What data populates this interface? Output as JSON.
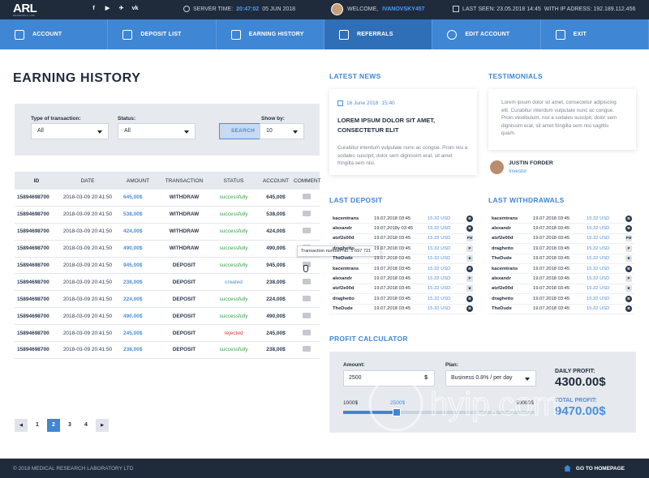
{
  "topbar": {
    "logo": "ARL",
    "logo_sub": "RESEARCH LAB",
    "social": [
      "f",
      "▶",
      "✈",
      "vk"
    ],
    "server_label": "SERVER TIME:",
    "server_time": "20:47:02",
    "server_date": "05 JUN 2018",
    "welcome_label": "WELCOME,",
    "username": "IVANOVSKY457",
    "last_seen": "LAST SEEN: 23.05.2018  14:45",
    "ip": "WITH IP ADRESS: 192.189.112.456"
  },
  "nav": [
    {
      "label": "ACCOUNT",
      "icon": "id-card-icon"
    },
    {
      "label": "DEPOSIT LIST",
      "icon": "image-icon"
    },
    {
      "label": "EARNING HISTORY",
      "icon": "document-icon"
    },
    {
      "label": "REFERRALS",
      "icon": "gift-icon",
      "active": true
    },
    {
      "label": "EDIT ACCOUNT",
      "icon": "gear-icon"
    },
    {
      "label": "EXIT",
      "icon": "exit-icon"
    }
  ],
  "earning": {
    "title": "EARNING HISTORY",
    "filter": {
      "type_label": "Type of transaction:",
      "type_value": "All",
      "status_label": "Status:",
      "status_value": "All",
      "search_label": "SEARCH",
      "show_label": "Show by:",
      "show_value": "10"
    },
    "columns": [
      "ID",
      "DATE",
      "AMOUNT",
      "TRANSACTION",
      "STATUS",
      "ACCOUNT",
      "COMMENT"
    ],
    "rows": [
      {
        "id": "15894698700",
        "date": "2018-03-09  20:41:50",
        "amount": "645,00$",
        "tx": "WITHDRAW",
        "status": "successfully",
        "account": "645,00$"
      },
      {
        "id": "15894698700",
        "date": "2018-03-09  20:41:50",
        "amount": "538,00$",
        "tx": "WITHDRAW",
        "status": "successfully",
        "account": "538,00$"
      },
      {
        "id": "15894698700",
        "date": "2018-03-09  20:41:50",
        "amount": "424,00$",
        "tx": "WITHDRAW",
        "status": "successfully",
        "account": "424,00$"
      },
      {
        "id": "15894698700",
        "date": "2018-03-09  20:41:50",
        "amount": "490,00$",
        "tx": "WITHDRAW",
        "status": "successfully",
        "account": "490,00$"
      },
      {
        "id": "15894698700",
        "date": "2018-03-09  20:41:50",
        "amount": "945,00$",
        "tx": "DEPOSIT",
        "status": "successfully",
        "account": "945,00$"
      },
      {
        "id": "15894698700",
        "date": "2018-03-09  20:41:50",
        "amount": "238,00$",
        "tx": "DEPOSIT",
        "status": "created",
        "account": "238,00$"
      },
      {
        "id": "15894698700",
        "date": "2018-03-09  20:41:50",
        "amount": "224,00$",
        "tx": "DEPOSIT",
        "status": "successfully",
        "account": "224,00$"
      },
      {
        "id": "15894698700",
        "date": "2018-03-09  20:41:50",
        "amount": "490,00$",
        "tx": "DEPOSIT",
        "status": "successfully",
        "account": "490,00$"
      },
      {
        "id": "15894698700",
        "date": "2018-03-09  20:41:50",
        "amount": "245,00$",
        "tx": "DEPOSIT",
        "status": "rejected",
        "account": "245,00$"
      },
      {
        "id": "15894698700",
        "date": "2018-03-09  20:41:50",
        "amount": "238,00$",
        "tx": "DEPOSIT",
        "status": "successfully",
        "account": "238,00$"
      }
    ],
    "tooltip": "Transaction number No. 5 697 721",
    "pages": [
      "1",
      "2",
      "3",
      "4"
    ],
    "active_page": "2"
  },
  "news": {
    "title": "LATEST NEWS",
    "date": "16 June 2018",
    "time": "15:40",
    "headline": "LOREM IPSUM DOLOR SIT AMET, CONSECTETUR ELIT",
    "text": "Curabitur interdum vulputate nunc ac congue. Proin nisi a sodales suscipit, dolor sem dignissim erat, sit amet fringilla sem nisi."
  },
  "testimonials": {
    "title": "TESTIMONIALS",
    "text": "Lorem ipsum dolor sit amet, consectetur adipiscing elit. Curabitur interdum vulputate nunc ac congue. Proin vestibulum, nisl a sodales suscipit, dolor sem dignissim erat, sit amet fringilla sem nisi sagittis quam.",
    "name": "JUSTIN FORDER",
    "role": "Investor"
  },
  "last_deposit": {
    "title": "LAST DEPOSIT",
    "rows": [
      {
        "name": "kacemtrans",
        "date": "19.07.2018  03:45",
        "amount": "15.32 USD",
        "icon": "B",
        "shape": "round"
      },
      {
        "name": "alexandr",
        "date": "19.07.2018y  03:45",
        "amount": "15.32 USD",
        "icon": "B",
        "shape": "round"
      },
      {
        "name": "atzf2e00d",
        "date": "19.07.2018  03:45",
        "amount": "15.32 USD",
        "icon": "PM",
        "shape": "square"
      },
      {
        "name": "draghetto",
        "date": "19.07.2018  03:45",
        "amount": "15.32 USD",
        "icon": "P",
        "shape": "square"
      },
      {
        "name": "TheDude",
        "date": "19.07.2018  03:45",
        "amount": "15.32 USD",
        "icon": "★",
        "shape": "square"
      },
      {
        "name": "kacemtrans",
        "date": "19.07.2018  03:45",
        "amount": "15.32 USD",
        "icon": "B",
        "shape": "round"
      },
      {
        "name": "alexandr",
        "date": "19.07.2018  03:45",
        "amount": "15.32 USD",
        "icon": "P",
        "shape": "square"
      },
      {
        "name": "atzf2e00d",
        "date": "19.07.2018  03:45",
        "amount": "15.32 USD",
        "icon": "★",
        "shape": "square"
      },
      {
        "name": "draghetto",
        "date": "19.07.2018  03:45",
        "amount": "15.32 USD",
        "icon": "B",
        "shape": "round"
      },
      {
        "name": "TheDude",
        "date": "19.07.2018  03:45",
        "amount": "15.32 USD",
        "icon": "B",
        "shape": "round"
      }
    ]
  },
  "last_withdrawals": {
    "title": "LAST WITHDRAWALS",
    "rows": [
      {
        "name": "kacemtrans",
        "date": "19.07.2018  03:45",
        "amount": "15.32 USD",
        "icon": "B",
        "shape": "round"
      },
      {
        "name": "alexandr",
        "date": "19.07.2018  03:45",
        "amount": "15.32 USD",
        "icon": "B",
        "shape": "round"
      },
      {
        "name": "atzf2e00d",
        "date": "19.07.2018  03:45",
        "amount": "15.32 USD",
        "icon": "PM",
        "shape": "square"
      },
      {
        "name": "draghetto",
        "date": "19.07.2018  03:45",
        "amount": "15.32 USD",
        "icon": "P",
        "shape": "square"
      },
      {
        "name": "TheDude",
        "date": "19.07.2018  03:45",
        "amount": "15.32 USD",
        "icon": "★",
        "shape": "square"
      },
      {
        "name": "kacemtrans",
        "date": "19.07.2018  03:45",
        "amount": "15.32 USD",
        "icon": "B",
        "shape": "round"
      },
      {
        "name": "alexandr",
        "date": "19.07.2018  03:45",
        "amount": "15.32 USD",
        "icon": "P",
        "shape": "square"
      },
      {
        "name": "atzf2e00d",
        "date": "19.07.2018  03:45",
        "amount": "15.32 USD",
        "icon": "★",
        "shape": "square"
      },
      {
        "name": "draghetto",
        "date": "19.07.2018  03:45",
        "amount": "15.32 USD",
        "icon": "B",
        "shape": "round"
      },
      {
        "name": "TheDude",
        "date": "19.07.2018  03:45",
        "amount": "15.32 USD",
        "icon": "B",
        "shape": "round"
      }
    ]
  },
  "calculator": {
    "title": "PROFIT CALCULATOR",
    "amount_label": "Amount:",
    "amount_value": "2500",
    "currency": "$",
    "plan_label": "Plan:",
    "plan_value": "Business 0.8% / per day",
    "daily_label": "DAILY PROFIT:",
    "daily_value": "4300.00$",
    "total_label": "TOTAL PROFIT:",
    "total_value": "9470.00$",
    "slider_min": "1000$",
    "slider_current": "2500$",
    "slider_max": "50000$",
    "slider_fraction": 0.28
  },
  "watermark": "hyip.com",
  "footer": {
    "copyright": "© 2018 MEDICAL RESEARCH LABORATORY LTD",
    "home_link": "GO TO HOMEPAGE"
  },
  "colors": {
    "accent": "#3f86d4",
    "dark": "#1f2b3b",
    "success": "#3aa04a",
    "danger": "#d43c3c"
  }
}
